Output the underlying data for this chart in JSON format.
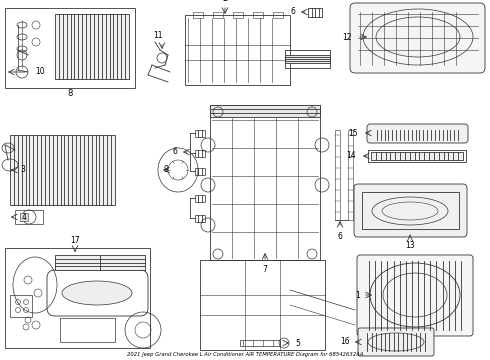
{
  "title": "2021 Jeep Grand Cherokee L Air Conditioner AIR TEMPERATURE Diagram for 68542632AA",
  "bg_color": "#ffffff",
  "lc": "#333333",
  "lw": 0.6,
  "fig_w": 4.9,
  "fig_h": 3.6,
  "dpi": 100
}
